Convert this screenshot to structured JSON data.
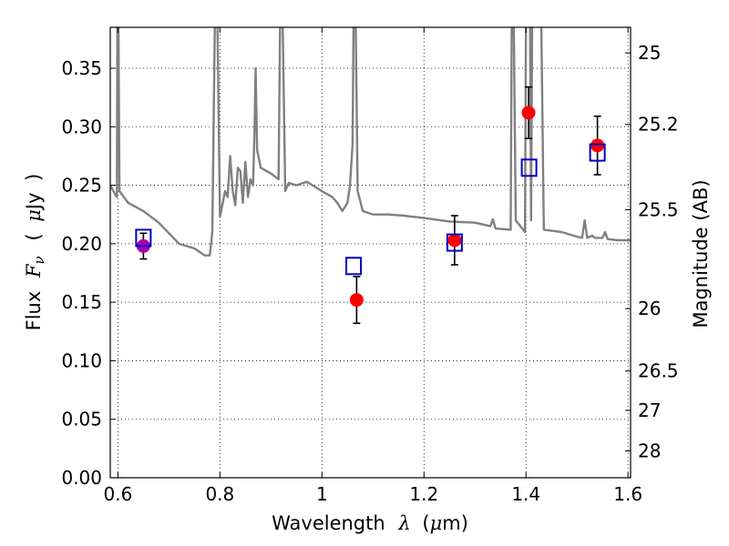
{
  "chart_data": {
    "type": "scatter",
    "xlabel": {
      "pre": "Wavelength",
      "symbol": "λ",
      "paren_open": "(",
      "unit_symbol": "μ",
      "unit_rest": "m)"
    },
    "ylabel": {
      "pre": "Flux",
      "symbol": "F",
      "subscript": "ν",
      "paren_open": "(",
      "unit_symbol": "μ",
      "unit_rest": "Jy",
      "paren_close": ")"
    },
    "y2label": "Magnitude (AB)",
    "xlim": [
      0.585,
      1.605
    ],
    "ylim": [
      0.0,
      0.385
    ],
    "xticks": [
      {
        "value": 0.6,
        "label": "0.6"
      },
      {
        "value": 0.8,
        "label": "0.8"
      },
      {
        "value": 1.0,
        "label": "1"
      },
      {
        "value": 1.2,
        "label": "1.2"
      },
      {
        "value": 1.4,
        "label": "1.4"
      },
      {
        "value": 1.6,
        "label": "1.6"
      }
    ],
    "yticks": [
      {
        "value": 0.0,
        "label": "0.00"
      },
      {
        "value": 0.05,
        "label": "0.05"
      },
      {
        "value": 0.1,
        "label": "0.10"
      },
      {
        "value": 0.15,
        "label": "0.15"
      },
      {
        "value": 0.2,
        "label": "0.20"
      },
      {
        "value": 0.25,
        "label": "0.25"
      },
      {
        "value": 0.3,
        "label": "0.30"
      },
      {
        "value": 0.35,
        "label": "0.35"
      }
    ],
    "y2ticks": [
      {
        "value": 25.0,
        "label": "25"
      },
      {
        "value": 25.2,
        "label": "25.2"
      },
      {
        "value": 25.5,
        "label": "25.5"
      },
      {
        "value": 26.0,
        "label": "26"
      },
      {
        "value": 26.5,
        "label": "26.5"
      },
      {
        "value": 27.0,
        "label": "27"
      },
      {
        "value": 28.0,
        "label": "28"
      }
    ],
    "grid": true,
    "colors": {
      "sed": "#808080",
      "observed": "#ff0000",
      "observed_special": "#aa00aa",
      "model": "#0000cc",
      "errorbar": "#000000"
    },
    "observed": [
      {
        "x": 0.65,
        "y": 0.198,
        "err": 0.011,
        "color": "observed_special"
      },
      {
        "x": 1.068,
        "y": 0.152,
        "err": 0.02,
        "color": "observed"
      },
      {
        "x": 1.26,
        "y": 0.203,
        "err": 0.021,
        "color": "observed"
      },
      {
        "x": 1.405,
        "y": 0.312,
        "err": 0.022,
        "color": "observed"
      },
      {
        "x": 1.54,
        "y": 0.284,
        "err": 0.025,
        "color": "observed"
      }
    ],
    "model_fluxes": [
      {
        "x": 0.65,
        "y": 0.205
      },
      {
        "x": 1.062,
        "y": 0.181
      },
      {
        "x": 1.26,
        "y": 0.201
      },
      {
        "x": 1.406,
        "y": 0.265
      },
      {
        "x": 1.54,
        "y": 0.278
      }
    ],
    "sed": [
      [
        0.585,
        0.25
      ],
      [
        0.595,
        0.242
      ],
      [
        0.598,
        0.24
      ],
      [
        0.599,
        0.39
      ],
      [
        0.601,
        0.39
      ],
      [
        0.603,
        0.245
      ],
      [
        0.62,
        0.235
      ],
      [
        0.65,
        0.228
      ],
      [
        0.68,
        0.218
      ],
      [
        0.72,
        0.2
      ],
      [
        0.75,
        0.196
      ],
      [
        0.77,
        0.19
      ],
      [
        0.78,
        0.19
      ],
      [
        0.785,
        0.21
      ],
      [
        0.79,
        0.39
      ],
      [
        0.795,
        0.39
      ],
      [
        0.8,
        0.223
      ],
      [
        0.81,
        0.245
      ],
      [
        0.815,
        0.24
      ],
      [
        0.82,
        0.275
      ],
      [
        0.825,
        0.245
      ],
      [
        0.83,
        0.233
      ],
      [
        0.835,
        0.265
      ],
      [
        0.84,
        0.262
      ],
      [
        0.845,
        0.235
      ],
      [
        0.85,
        0.27
      ],
      [
        0.855,
        0.24
      ],
      [
        0.86,
        0.255
      ],
      [
        0.865,
        0.25
      ],
      [
        0.868,
        0.3
      ],
      [
        0.87,
        0.35
      ],
      [
        0.873,
        0.28
      ],
      [
        0.88,
        0.265
      ],
      [
        0.9,
        0.26
      ],
      [
        0.915,
        0.255
      ],
      [
        0.918,
        0.39
      ],
      [
        0.923,
        0.39
      ],
      [
        0.928,
        0.245
      ],
      [
        0.935,
        0.252
      ],
      [
        0.95,
        0.25
      ],
      [
        0.97,
        0.253
      ],
      [
        1.0,
        0.245
      ],
      [
        1.02,
        0.24
      ],
      [
        1.03,
        0.235
      ],
      [
        1.04,
        0.228
      ],
      [
        1.05,
        0.235
      ],
      [
        1.055,
        0.25
      ],
      [
        1.06,
        0.285
      ],
      [
        1.062,
        0.39
      ],
      [
        1.066,
        0.39
      ],
      [
        1.07,
        0.245
      ],
      [
        1.08,
        0.228
      ],
      [
        1.1,
        0.225
      ],
      [
        1.13,
        0.225
      ],
      [
        1.16,
        0.224
      ],
      [
        1.2,
        0.222
      ],
      [
        1.25,
        0.219
      ],
      [
        1.3,
        0.218
      ],
      [
        1.33,
        0.215
      ],
      [
        1.335,
        0.221
      ],
      [
        1.34,
        0.213
      ],
      [
        1.37,
        0.212
      ],
      [
        1.372,
        0.39
      ],
      [
        1.376,
        0.39
      ],
      [
        1.38,
        0.22
      ],
      [
        1.398,
        0.21
      ],
      [
        1.4,
        0.39
      ],
      [
        1.408,
        0.39
      ],
      [
        1.41,
        0.22
      ],
      [
        1.412,
        0.39
      ],
      [
        1.43,
        0.39
      ],
      [
        1.435,
        0.212
      ],
      [
        1.47,
        0.21
      ],
      [
        1.5,
        0.206
      ],
      [
        1.51,
        0.205
      ],
      [
        1.515,
        0.22
      ],
      [
        1.52,
        0.205
      ],
      [
        1.53,
        0.207
      ],
      [
        1.535,
        0.205
      ],
      [
        1.55,
        0.205
      ],
      [
        1.555,
        0.21
      ],
      [
        1.56,
        0.204
      ],
      [
        1.58,
        0.203
      ],
      [
        1.605,
        0.203
      ]
    ]
  }
}
